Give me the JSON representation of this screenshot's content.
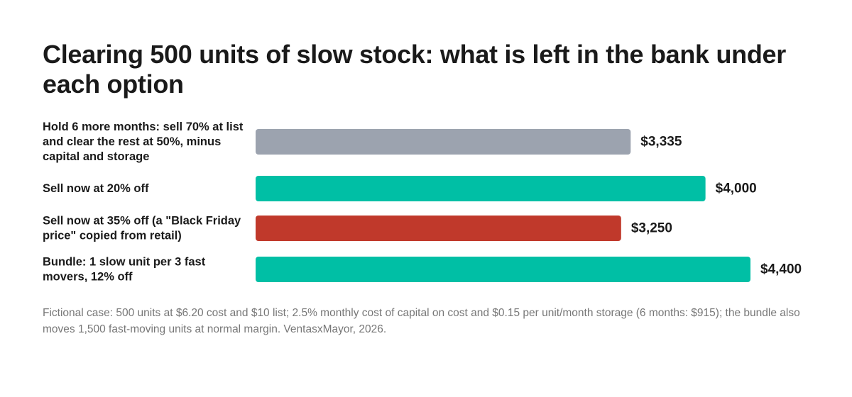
{
  "chart_data": {
    "type": "bar",
    "orientation": "horizontal",
    "title": "Clearing 500 units of slow stock: what is left in the bank under each option",
    "categories": [
      "Hold 6 more months: sell 70% at list and clear the rest at 50%, minus capital and storage",
      "Sell now at 20% off",
      "Sell now at 35% off (a \"Black Friday price\" copied from retail)",
      "Bundle: 1 slow unit per 3 fast movers, 12% off"
    ],
    "values": [
      3335,
      4000,
      3250,
      4400
    ],
    "value_labels": [
      "$3,335",
      "$4,000",
      "$3,250",
      "$4,400"
    ],
    "colors": [
      "#9ca3af",
      "#00bfa5",
      "#c0392b",
      "#00bfa5"
    ],
    "xlim": [
      0,
      4400
    ],
    "grid": false,
    "legend": "none"
  },
  "footnote": "Fictional case: 500 units at $6.20 cost and $10 list; 2.5% monthly cost of capital on cost and $0.15 per unit/month storage (6 months: $915); the bundle also moves 1,500 fast-moving units at normal margin. VentasxMayor, 2026."
}
